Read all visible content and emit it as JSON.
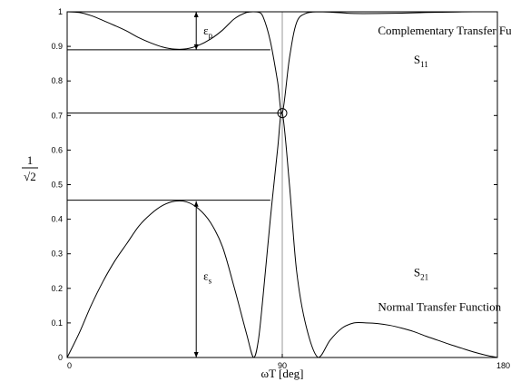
{
  "chart_data": {
    "type": "line",
    "xlabel": "ωT  [deg]",
    "ylabel_numerator": "1",
    "ylabel_radical": "√2",
    "xlim": [
      0,
      180
    ],
    "ylim": [
      0,
      1
    ],
    "x_ticks": [
      0,
      90,
      180
    ],
    "y_ticks": [
      0,
      0.1,
      0.2,
      0.3,
      0.4,
      0.5,
      0.6,
      0.7,
      0.8,
      0.9,
      1
    ],
    "grid": false,
    "series": [
      {
        "name": "S21",
        "x": [
          0,
          5,
          10,
          15,
          20,
          25,
          30,
          35,
          40,
          45,
          50,
          55,
          60,
          65,
          70,
          75,
          78,
          80,
          82,
          85,
          88,
          90,
          93,
          96,
          100,
          105,
          110,
          115,
          120,
          125,
          130,
          135,
          140,
          145,
          150,
          155,
          160,
          165,
          170,
          175,
          180
        ],
        "y": [
          0,
          0.07,
          0.15,
          0.22,
          0.28,
          0.33,
          0.38,
          0.415,
          0.44,
          0.452,
          0.45,
          0.43,
          0.39,
          0.32,
          0.2,
          0.07,
          0,
          0.05,
          0.18,
          0.4,
          0.6,
          0.707,
          0.5,
          0.25,
          0.09,
          0,
          0.05,
          0.085,
          0.1,
          0.1,
          0.098,
          0.093,
          0.085,
          0.075,
          0.062,
          0.05,
          0.038,
          0.027,
          0.016,
          0.007,
          0
        ]
      },
      {
        "name": "S11",
        "x": [
          0,
          5,
          10,
          15,
          20,
          25,
          30,
          35,
          40,
          45,
          50,
          55,
          60,
          65,
          70,
          75,
          78,
          80,
          82,
          85,
          88,
          90,
          93,
          96,
          100,
          105,
          110,
          115,
          120,
          130,
          140,
          150,
          160,
          170,
          180
        ],
        "y": [
          1,
          0.998,
          0.989,
          0.975,
          0.96,
          0.944,
          0.925,
          0.91,
          0.898,
          0.892,
          0.893,
          0.903,
          0.921,
          0.947,
          0.98,
          0.998,
          1,
          0.999,
          0.985,
          0.915,
          0.8,
          0.707,
          0.866,
          0.969,
          0.996,
          1,
          0.999,
          0.997,
          0.995,
          0.995,
          0.996,
          0.998,
          0.999,
          1,
          1
        ]
      }
    ],
    "reference_lines": [
      {
        "y": 0.89,
        "x_start": 0,
        "x_end": 85
      },
      {
        "y": 0.707,
        "x_start": 0,
        "x_end": 90
      },
      {
        "y": 0.455,
        "x_start": 0,
        "x_end": 85
      }
    ],
    "vertical_line": {
      "x": 90
    },
    "crossover_marker": {
      "x": 90,
      "y": 0.707
    },
    "arrows": [
      {
        "x": 54,
        "y_from": 0.89,
        "y_to": 1
      },
      {
        "x": 54,
        "y_from": 0,
        "y_to": 0.452
      }
    ],
    "annotations": {
      "eps_p": {
        "text": "ε",
        "sub": "p",
        "x": 57,
        "y": 0.935
      },
      "eps_s": {
        "text": "ε",
        "sub": "s",
        "x": 57,
        "y": 0.225
      },
      "complementary_label": {
        "text": "Complementary Transfer Function",
        "x": 130,
        "y": 0.935
      },
      "s11_label": {
        "text": "S",
        "sub": "11",
        "x": 145,
        "y": 0.85
      },
      "s21_label": {
        "text": "S",
        "sub": "21",
        "x": 145,
        "y": 0.235
      },
      "normal_label": {
        "text": "Normal Transfer Function",
        "x": 130,
        "y": 0.135
      }
    }
  }
}
